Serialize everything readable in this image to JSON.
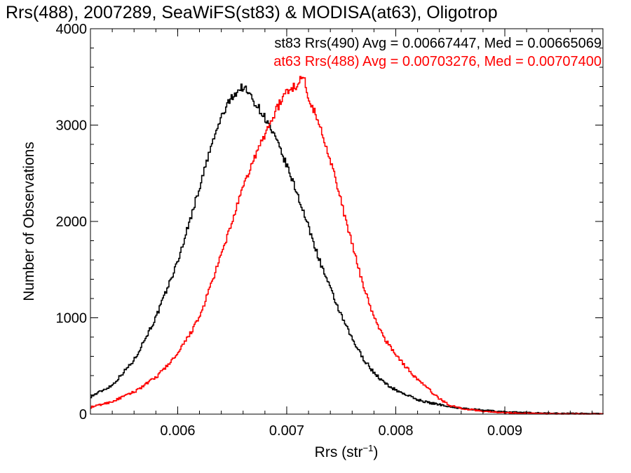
{
  "chart_data": {
    "type": "histogram",
    "title": "Rrs(488), 2007289, SeaWiFS(st83) & MODISA(at63), Oligotrop",
    "xlabel": "Rrs (str",
    "xlabel_sup": "−1",
    "xlabel_close": ")",
    "ylabel": "Number of Observations",
    "xlim": [
      0.0052,
      0.0099
    ],
    "ylim": [
      0,
      4000
    ],
    "x_ticks": [
      0.006,
      0.007,
      0.008,
      0.009
    ],
    "x_tick_labels": [
      "0.006",
      "0.007",
      "0.008",
      "0.009"
    ],
    "y_ticks": [
      0,
      1000,
      2000,
      3000,
      4000
    ],
    "y_tick_labels": [
      "0",
      "1000",
      "2000",
      "3000",
      "4000"
    ],
    "grid": false,
    "legend_position": "top-right",
    "series": [
      {
        "name": "st83 Rrs(490) Avg = 0.00667447, Med = 0.00665069",
        "color": "#000000",
        "x": [
          0.0052,
          0.0054,
          0.0056,
          0.0058,
          0.006,
          0.0062,
          0.0063,
          0.0064,
          0.0065,
          0.0066,
          0.00665,
          0.0067,
          0.0068,
          0.0069,
          0.007,
          0.0071,
          0.0072,
          0.0073,
          0.0074,
          0.0075,
          0.0076,
          0.0077,
          0.0078,
          0.0079,
          0.008,
          0.0081,
          0.0082,
          0.0083,
          0.0084,
          0.0086,
          0.0088,
          0.009,
          0.0092,
          0.0094,
          0.0096,
          0.0099
        ],
        "y": [
          180,
          300,
          560,
          1000,
          1580,
          2350,
          2750,
          3080,
          3300,
          3400,
          3330,
          3250,
          3080,
          2850,
          2580,
          2280,
          1940,
          1600,
          1300,
          1020,
          780,
          580,
          430,
          320,
          250,
          200,
          150,
          120,
          100,
          60,
          40,
          25,
          15,
          10,
          8,
          5
        ]
      },
      {
        "name": "at63 Rrs(488) Avg = 0.00703276, Med = 0.00707400",
        "color": "#ff0000",
        "x": [
          0.0052,
          0.0054,
          0.0056,
          0.0058,
          0.006,
          0.0062,
          0.0064,
          0.0065,
          0.0066,
          0.0067,
          0.0068,
          0.0069,
          0.007,
          0.0071,
          0.00715,
          0.0072,
          0.0073,
          0.0074,
          0.0075,
          0.0076,
          0.0077,
          0.0078,
          0.0079,
          0.008,
          0.0081,
          0.0082,
          0.0083,
          0.0084,
          0.0085,
          0.0086,
          0.0088,
          0.009,
          0.0092,
          0.0094,
          0.0096,
          0.0099
        ],
        "y": [
          70,
          130,
          230,
          380,
          620,
          1000,
          1650,
          2000,
          2350,
          2650,
          2900,
          3150,
          3350,
          3420,
          3520,
          3300,
          3000,
          2650,
          2200,
          1760,
          1350,
          1000,
          780,
          620,
          480,
          360,
          260,
          160,
          90,
          60,
          30,
          15,
          8,
          5,
          3,
          2
        ]
      }
    ]
  }
}
